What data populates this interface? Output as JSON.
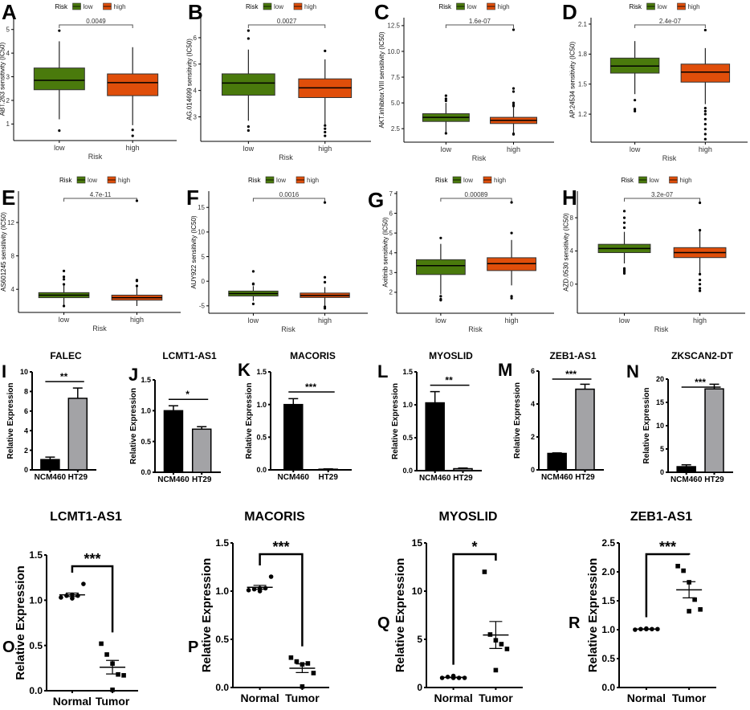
{
  "colors": {
    "low": "#4a7a0c",
    "high": "#e04e0a",
    "ncm460": "#000000",
    "ht29": "#a3a3a6"
  },
  "chart_data": [
    {
      "panel": "A",
      "type": "box",
      "ylabel": "ABT.263 sensitivity (IC50)",
      "xlabel": "Risk",
      "legend_title": "Risk",
      "categories": [
        "low",
        "high"
      ],
      "pvalue": "0.0049",
      "ylim": [
        0.3,
        5.5
      ],
      "ticks": [
        1,
        2,
        3,
        4,
        5
      ],
      "groups": [
        {
          "q1": 2.45,
          "median": 2.85,
          "q3": 3.37,
          "wlo": 1.2,
          "whi": 4.5,
          "outliers": [
            4.95,
            0.72
          ]
        },
        {
          "q1": 2.2,
          "median": 2.75,
          "q3": 3.12,
          "wlo": 0.95,
          "whi": 4.25,
          "outliers": [
            0.75,
            0.5
          ]
        }
      ]
    },
    {
      "panel": "B",
      "type": "box",
      "ylabel": "AG.014699 sensitivity (IC50)",
      "xlabel": "Risk",
      "legend_title": "Risk",
      "categories": [
        "low",
        "high"
      ],
      "pvalue": "0.0027",
      "ylim": [
        2.07,
        6.76
      ],
      "ticks": [
        3,
        4,
        5,
        6
      ],
      "groups": [
        {
          "q1": 3.82,
          "median": 4.28,
          "q3": 4.63,
          "wlo": 2.85,
          "whi": 5.55,
          "outliers": [
            6.27,
            5.97,
            2.63,
            2.48
          ]
        },
        {
          "q1": 3.73,
          "median": 4.1,
          "q3": 4.44,
          "wlo": 2.7,
          "whi": 5.18,
          "outliers": [
            5.5,
            2.67,
            2.55,
            2.42,
            2.28
          ]
        }
      ]
    },
    {
      "panel": "C",
      "type": "box",
      "ylabel": "AKT.inhibitor.VIII sensitivity (IC50)",
      "xlabel": "Risk",
      "legend_title": "Risk",
      "categories": [
        "low",
        "high"
      ],
      "pvalue": "1.6e-07",
      "ylim": [
        1.19,
        13.27
      ],
      "ticks": [
        "2.5",
        "5.0",
        "7.5",
        "10.0",
        "12.5"
      ],
      "groups": [
        {
          "q1": 3.2,
          "median": 3.6,
          "q3": 3.95,
          "wlo": 2.1,
          "whi": 5.0,
          "outliers": [
            5.7,
            5.4,
            5.2,
            2.05
          ]
        },
        {
          "q1": 3.0,
          "median": 3.3,
          "q3": 3.6,
          "wlo": 2.1,
          "whi": 4.6,
          "outliers": [
            12.1,
            6.4,
            6.1,
            5.0,
            4.8,
            4.7,
            2.0,
            1.95
          ]
        }
      ]
    },
    {
      "panel": "D",
      "type": "box",
      "ylabel": "AP.24534 sensitivity (IC50)",
      "xlabel": "Risk",
      "legend_title": "Risk",
      "categories": [
        "low",
        "high"
      ],
      "pvalue": "2.4e-07",
      "ylim": [
        0.92,
        2.164
      ],
      "ticks": [
        "1.2",
        "1.5",
        "1.8",
        "2.1"
      ],
      "groups": [
        {
          "q1": 1.61,
          "median": 1.68,
          "q3": 1.76,
          "wlo": 1.4,
          "whi": 1.93,
          "outliers": [
            1.34,
            1.25,
            1.23
          ]
        },
        {
          "q1": 1.52,
          "median": 1.62,
          "q3": 1.7,
          "wlo": 1.3,
          "whi": 1.86,
          "outliers": [
            2.04,
            1.26,
            1.23,
            1.2,
            1.15,
            1.1,
            1.05,
            1.0,
            0.95
          ]
        }
      ]
    },
    {
      "panel": "E",
      "type": "box",
      "ylabel": "AS601245 sensitivity (IC50)",
      "xlabel": "Risk",
      "legend_title": "Risk",
      "categories": [
        "low",
        "high"
      ],
      "pvalue": "4.7e-11",
      "ylim": [
        1.23,
        15.75
      ],
      "ticks": [
        4,
        8,
        12
      ],
      "groups": [
        {
          "q1": 3.0,
          "median": 3.3,
          "q3": 3.6,
          "wlo": 2.0,
          "whi": 4.5,
          "outliers": [
            6.2,
            5.5,
            5.2,
            4.6,
            2.0
          ]
        },
        {
          "q1": 2.7,
          "median": 3.0,
          "q3": 3.3,
          "wlo": 2.0,
          "whi": 4.3,
          "outliers": [
            14.6,
            5.1,
            5.0,
            4.4
          ]
        }
      ]
    },
    {
      "panel": "F",
      "type": "box",
      "ylabel": "AUY922 sensitivity (IC50)",
      "xlabel": "Risk",
      "legend_title": "Risk",
      "categories": [
        "low",
        "high"
      ],
      "pvalue": "0.0016",
      "ylim": [
        -6.5,
        18.3
      ],
      "ticks": [
        -5,
        0,
        5,
        10,
        15
      ],
      "groups": [
        {
          "q1": -3.0,
          "median": -2.5,
          "q3": -2.0,
          "wlo": -4.0,
          "whi": -1.0,
          "outliers": [
            2.0,
            -0.5,
            -0.6,
            -4.6
          ]
        },
        {
          "q1": -3.3,
          "median": -2.9,
          "q3": -2.4,
          "wlo": -5.0,
          "whi": -1.2,
          "outliers": [
            16.0,
            0.8,
            -0.2,
            -5.2,
            -5.5
          ]
        }
      ]
    },
    {
      "panel": "G",
      "type": "box",
      "ylabel": "Axitinib sensitivity (IC50)",
      "xlabel": "Risk",
      "legend_title": "Risk",
      "categories": [
        "low",
        "high"
      ],
      "pvalue": "0.00089",
      "ylim": [
        0.94,
        7.12
      ],
      "ticks": [
        2,
        3,
        4,
        5,
        6,
        7
      ],
      "groups": [
        {
          "q1": 2.9,
          "median": 3.35,
          "q3": 3.65,
          "wlo": 1.9,
          "whi": 4.45,
          "outliers": [
            4.75,
            1.8,
            1.65,
            1.6
          ]
        },
        {
          "q1": 3.1,
          "median": 3.45,
          "q3": 3.75,
          "wlo": 2.35,
          "whi": 4.65,
          "outliers": [
            6.55,
            5.0,
            1.8,
            1.7
          ]
        }
      ]
    },
    {
      "panel": "H",
      "type": "box",
      "ylabel": "AZD.0530 sensitivity (IC50)",
      "xlabel": "Risk",
      "legend_title": "Risk",
      "categories": [
        "low",
        "high"
      ],
      "pvalue": "3.2e-07",
      "ylim": [
        -3.5,
        11.2
      ],
      "ticks": [
        0,
        4,
        8
      ],
      "groups": [
        {
          "q1": 3.8,
          "median": 4.3,
          "q3": 4.8,
          "wlo": 2.5,
          "whi": 6.3,
          "outliers": [
            8.8,
            8.0,
            7.4,
            6.8,
            1.9,
            1.7,
            1.5,
            1.3
          ]
        },
        {
          "q1": 3.2,
          "median": 3.8,
          "q3": 4.4,
          "wlo": 1.2,
          "whi": 6.6,
          "outliers": [
            9.8,
            6.5,
            1.2,
            0.5,
            0.0,
            -0.5,
            -0.8
          ]
        }
      ]
    },
    {
      "panel": "I",
      "type": "bar",
      "title": "FALEC",
      "ylabel": "Relative Expression",
      "categories": [
        "NCM460",
        "HT29"
      ],
      "values": [
        1.05,
        7.3
      ],
      "errors": [
        0.25,
        1.05
      ],
      "sig": "**",
      "ylim": [
        0,
        10
      ],
      "ticks": [
        0,
        2,
        4,
        6,
        8,
        10
      ]
    },
    {
      "panel": "J",
      "type": "bar",
      "title": "LCMT1-AS1",
      "ylabel": "Relative Expression",
      "categories": [
        "NCM460",
        "HT29"
      ],
      "values": [
        1.0,
        0.7
      ],
      "errors": [
        0.08,
        0.04
      ],
      "sig": "*",
      "ylim": [
        0,
        1.5
      ],
      "ticks": [
        "0.0",
        "0.5",
        "1.0",
        "1.5"
      ]
    },
    {
      "panel": "K",
      "type": "bar",
      "title": "MACORIS",
      "ylabel": "Relative Expression",
      "categories": [
        "NCM460",
        "HT29"
      ],
      "values": [
        1.0,
        0.01
      ],
      "errors": [
        0.09,
        0.005
      ],
      "sig": "***",
      "ylim": [
        0,
        1.5
      ],
      "ticks": [
        "0.0",
        "0.5",
        "1.0",
        "1.5"
      ]
    },
    {
      "panel": "L",
      "type": "bar",
      "title": "MYOSLID",
      "ylabel": "Relative Expression",
      "categories": [
        "NCM460",
        "HT29"
      ],
      "values": [
        1.03,
        0.03
      ],
      "errors": [
        0.17,
        0.01
      ],
      "sig": "**",
      "ylim": [
        0,
        1.5
      ],
      "ticks": [
        "0.0",
        "0.5",
        "1.0",
        "1.5"
      ]
    },
    {
      "panel": "M",
      "type": "bar",
      "title": "ZEB1-AS1",
      "ylabel": "Relative Expression",
      "categories": [
        "NCM460",
        "HT29"
      ],
      "values": [
        1.0,
        4.9
      ],
      "errors": [
        0.03,
        0.3
      ],
      "sig": "***",
      "ylim": [
        0,
        6
      ],
      "ticks": [
        0,
        2,
        4,
        6
      ]
    },
    {
      "panel": "N",
      "type": "bar",
      "title": "ZKSCAN2-DT",
      "ylabel": "Relative Expression",
      "categories": [
        "NCM460",
        "HT29"
      ],
      "values": [
        1.2,
        17.9
      ],
      "errors": [
        0.4,
        1.0
      ],
      "sig": "***",
      "ylim": [
        0,
        20
      ],
      "ticks": [
        0,
        5,
        10,
        15,
        20
      ]
    },
    {
      "panel": "O",
      "type": "scatter",
      "title": "LCMT1-AS1",
      "ylabel": "Relative Expression",
      "categories": [
        "Normal",
        "Tumor"
      ],
      "sig": "***",
      "ylim": [
        0,
        1.5
      ],
      "ticks": [
        "0.0",
        "0.5",
        "1.0",
        "1.5"
      ],
      "groups": [
        {
          "points": [
            1.03,
            1.05,
            1.06,
            1.05,
            1.18,
            1.02
          ],
          "mean": 1.06,
          "sem": 0.02
        },
        {
          "points": [
            0.52,
            0.4,
            0.3,
            0.18,
            0.17,
            0.01
          ],
          "mean": 0.26,
          "sem": 0.075
        }
      ]
    },
    {
      "panel": "P",
      "type": "scatter",
      "title": "MACORIS",
      "ylabel": "Relative Expression",
      "categories": [
        "Normal",
        "Tumor"
      ],
      "sig": "***",
      "ylim": [
        0,
        1.5
      ],
      "ticks": [
        "0.0",
        "0.5",
        "1.0",
        "1.5"
      ],
      "groups": [
        {
          "points": [
            1.01,
            1.02,
            1.03,
            1.03,
            1.15,
            1.0
          ],
          "mean": 1.04,
          "sem": 0.02
        },
        {
          "points": [
            0.31,
            0.27,
            0.24,
            0.25,
            0.15,
            0.01
          ],
          "mean": 0.2,
          "sem": 0.045
        }
      ]
    },
    {
      "panel": "Q",
      "type": "scatter",
      "title": "MYOSLID",
      "ylabel": "Relative Expression",
      "categories": [
        "Normal",
        "Tumor"
      ],
      "sig": "*",
      "ylim": [
        0,
        15
      ],
      "ticks": [
        0,
        5,
        10,
        15
      ],
      "groups": [
        {
          "points": [
            1.0,
            1.1,
            1.2,
            1.0,
            1.0,
            1.0
          ],
          "mean": 1.05,
          "sem": 0.03
        },
        {
          "points": [
            12.0,
            5.5,
            4.9,
            4.5,
            4.0,
            1.8
          ],
          "mean": 5.45,
          "sem": 1.4
        }
      ]
    },
    {
      "panel": "R",
      "type": "scatter",
      "title": "ZEB1-AS1",
      "ylabel": "Relative Expression",
      "categories": [
        "Normal",
        "Tumor"
      ],
      "sig": "***",
      "ylim": [
        0,
        2.5
      ],
      "ticks": [
        "0.0",
        "0.5",
        "1.0",
        "1.5",
        "2.0",
        "2.5"
      ],
      "groups": [
        {
          "points": [
            1.0,
            1.01,
            1.02,
            1.01,
            1.01,
            1.01
          ],
          "mean": 1.01,
          "sem": 0.005
        },
        {
          "points": [
            2.1,
            2.02,
            1.82,
            1.52,
            1.35,
            1.32
          ],
          "mean": 1.69,
          "sem": 0.14
        }
      ]
    }
  ]
}
